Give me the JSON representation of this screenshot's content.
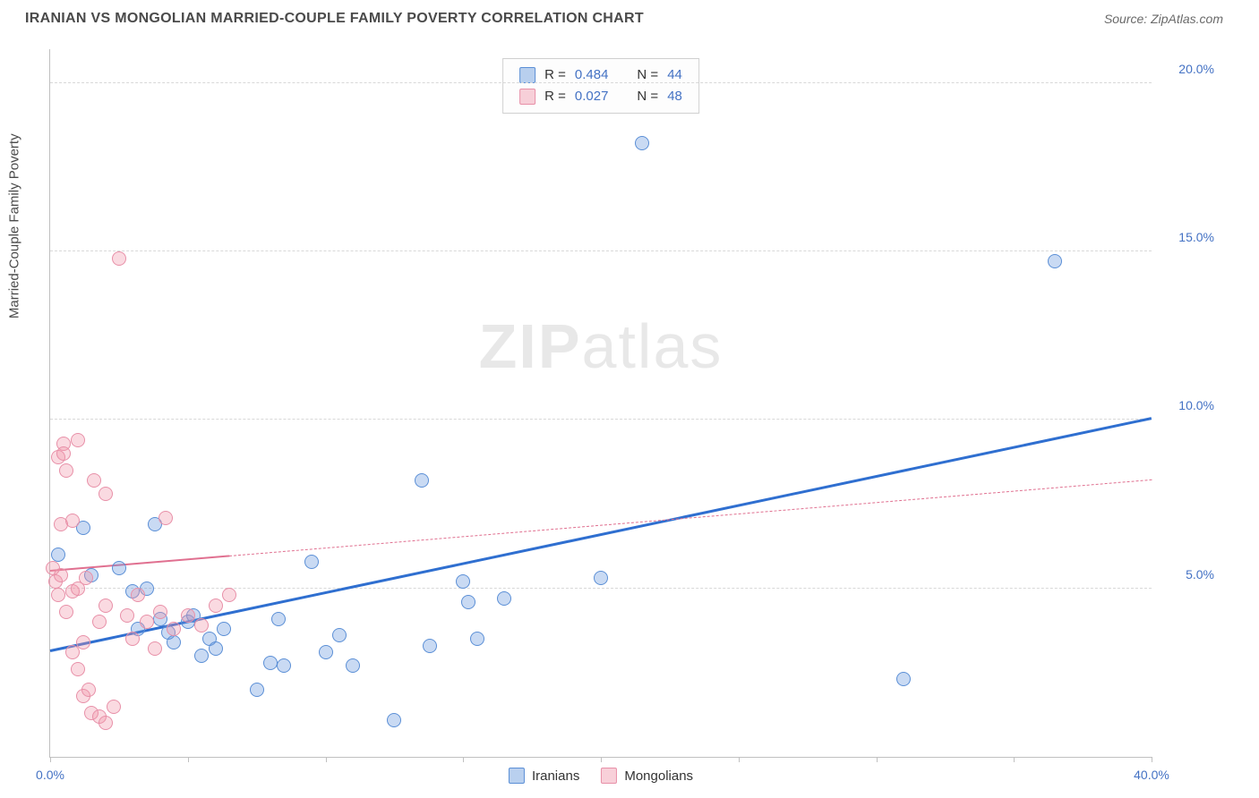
{
  "title": "IRANIAN VS MONGOLIAN MARRIED-COUPLE FAMILY POVERTY CORRELATION CHART",
  "source": "Source: ZipAtlas.com",
  "ylabel": "Married-Couple Family Poverty",
  "watermark_bold": "ZIP",
  "watermark_light": "atlas",
  "chart": {
    "type": "scatter",
    "xlim": [
      0,
      40
    ],
    "ylim": [
      0,
      21
    ],
    "xticks": [
      0,
      5,
      10,
      15,
      20,
      25,
      30,
      35,
      40
    ],
    "xtick_labels": {
      "0": "0.0%",
      "40": "40.0%"
    },
    "yticks": [
      5,
      10,
      15,
      20
    ],
    "ytick_labels": {
      "5": "5.0%",
      "10": "10.0%",
      "15": "15.0%",
      "20": "20.0%"
    },
    "background_color": "#ffffff",
    "grid_color": "#d8d8d8",
    "axis_label_color": "#4472c4",
    "series": [
      {
        "name": "Iranians",
        "color_fill": "rgba(100,150,220,0.35)",
        "color_stroke": "#5b8fd6",
        "marker_size": 16,
        "R": "0.484",
        "N": "44",
        "trend": {
          "x1": 0,
          "y1": 3.1,
          "x2": 40,
          "y2": 10.0,
          "color": "#2f6fd0",
          "width": 3,
          "dash": false,
          "solid_until_x": 40
        },
        "points": [
          [
            0.3,
            6.0
          ],
          [
            1.2,
            6.8
          ],
          [
            1.5,
            5.4
          ],
          [
            2.5,
            5.6
          ],
          [
            3.0,
            4.9
          ],
          [
            3.2,
            3.8
          ],
          [
            3.5,
            5.0
          ],
          [
            3.8,
            6.9
          ],
          [
            4.0,
            4.1
          ],
          [
            4.3,
            3.7
          ],
          [
            4.5,
            3.4
          ],
          [
            5.0,
            4.0
          ],
          [
            5.2,
            4.2
          ],
          [
            5.5,
            3.0
          ],
          [
            5.8,
            3.5
          ],
          [
            6.0,
            3.2
          ],
          [
            6.3,
            3.8
          ],
          [
            7.5,
            2.0
          ],
          [
            8.0,
            2.8
          ],
          [
            8.3,
            4.1
          ],
          [
            8.5,
            2.7
          ],
          [
            9.5,
            5.8
          ],
          [
            10.0,
            3.1
          ],
          [
            10.5,
            3.6
          ],
          [
            11.0,
            2.7
          ],
          [
            12.5,
            1.1
          ],
          [
            13.5,
            8.2
          ],
          [
            13.8,
            3.3
          ],
          [
            15.0,
            5.2
          ],
          [
            15.2,
            4.6
          ],
          [
            15.5,
            3.5
          ],
          [
            16.5,
            4.7
          ],
          [
            20.0,
            5.3
          ],
          [
            21.5,
            18.2
          ],
          [
            31.0,
            2.3
          ],
          [
            36.5,
            14.7
          ]
        ]
      },
      {
        "name": "Mongolians",
        "color_fill": "rgba(240,150,170,0.35)",
        "color_stroke": "#e890a8",
        "marker_size": 16,
        "R": "0.027",
        "N": "48",
        "trend": {
          "x1": 0,
          "y1": 5.5,
          "x2": 40,
          "y2": 8.2,
          "color": "#e07090",
          "width": 2,
          "dash": true,
          "solid_until_x": 6.5
        },
        "points": [
          [
            0.1,
            5.6
          ],
          [
            0.2,
            5.2
          ],
          [
            0.3,
            4.8
          ],
          [
            0.3,
            8.9
          ],
          [
            0.4,
            6.9
          ],
          [
            0.4,
            5.4
          ],
          [
            0.5,
            9.3
          ],
          [
            0.5,
            9.0
          ],
          [
            0.6,
            8.5
          ],
          [
            0.6,
            4.3
          ],
          [
            0.8,
            3.1
          ],
          [
            0.8,
            4.9
          ],
          [
            0.8,
            7.0
          ],
          [
            1.0,
            2.6
          ],
          [
            1.0,
            5.0
          ],
          [
            1.0,
            9.4
          ],
          [
            1.2,
            3.4
          ],
          [
            1.2,
            1.8
          ],
          [
            1.3,
            5.3
          ],
          [
            1.4,
            2.0
          ],
          [
            1.5,
            1.3
          ],
          [
            1.6,
            8.2
          ],
          [
            1.8,
            4.0
          ],
          [
            1.8,
            1.2
          ],
          [
            2.0,
            4.5
          ],
          [
            2.0,
            7.8
          ],
          [
            2.0,
            1.0
          ],
          [
            2.3,
            1.5
          ],
          [
            2.5,
            14.8
          ],
          [
            2.8,
            4.2
          ],
          [
            3.0,
            3.5
          ],
          [
            3.2,
            4.8
          ],
          [
            3.5,
            4.0
          ],
          [
            3.8,
            3.2
          ],
          [
            4.0,
            4.3
          ],
          [
            4.2,
            7.1
          ],
          [
            4.5,
            3.8
          ],
          [
            5.0,
            4.2
          ],
          [
            5.5,
            3.9
          ],
          [
            6.0,
            4.5
          ],
          [
            6.5,
            4.8
          ]
        ]
      }
    ]
  },
  "legend": {
    "swatch_blue_fill": "rgba(100,150,220,0.45)",
    "swatch_blue_border": "#5b8fd6",
    "swatch_pink_fill": "rgba(240,150,170,0.45)",
    "swatch_pink_border": "#e890a8"
  }
}
